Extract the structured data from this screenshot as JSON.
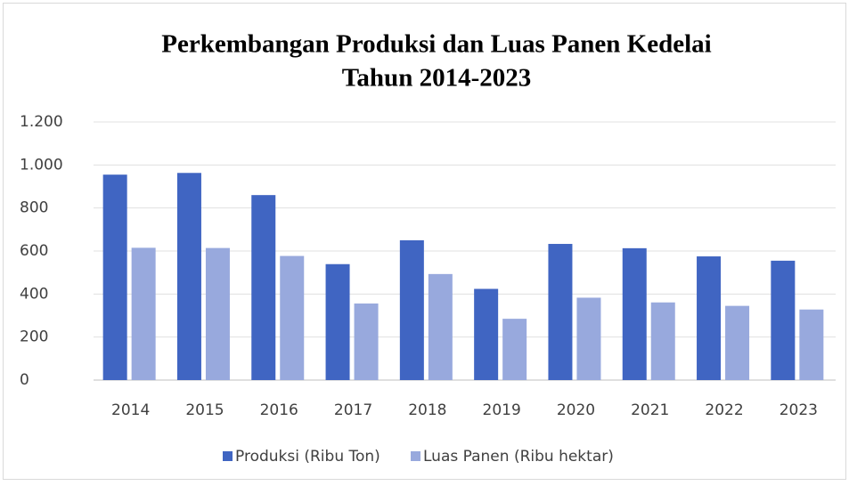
{
  "chart_data": {
    "type": "bar",
    "title": [
      "Perkembangan Produksi dan Luas Panen Kedelai",
      "Tahun 2014-2023"
    ],
    "categories": [
      "2014",
      "2015",
      "2016",
      "2017",
      "2018",
      "2019",
      "2020",
      "2021",
      "2022",
      "2023"
    ],
    "series": [
      {
        "name": "Produksi (Ribu Ton)",
        "color": "#4065c2",
        "values": [
          955,
          963,
          860,
          539,
          650,
          424,
          633,
          613,
          575,
          555
        ]
      },
      {
        "name": "Luas Panen (Ribu hektar)",
        "color": "#98a9dd",
        "values": [
          615,
          614,
          577,
          356,
          493,
          285,
          383,
          361,
          345,
          328
        ]
      }
    ],
    "ylim": [
      0,
      1200
    ],
    "yticks": [
      0,
      200,
      400,
      600,
      800,
      {
        "value": 1000,
        "label": "1.000"
      },
      {
        "value": 1200,
        "label": "1.200"
      }
    ],
    "grid": true,
    "legend": "bottom"
  }
}
